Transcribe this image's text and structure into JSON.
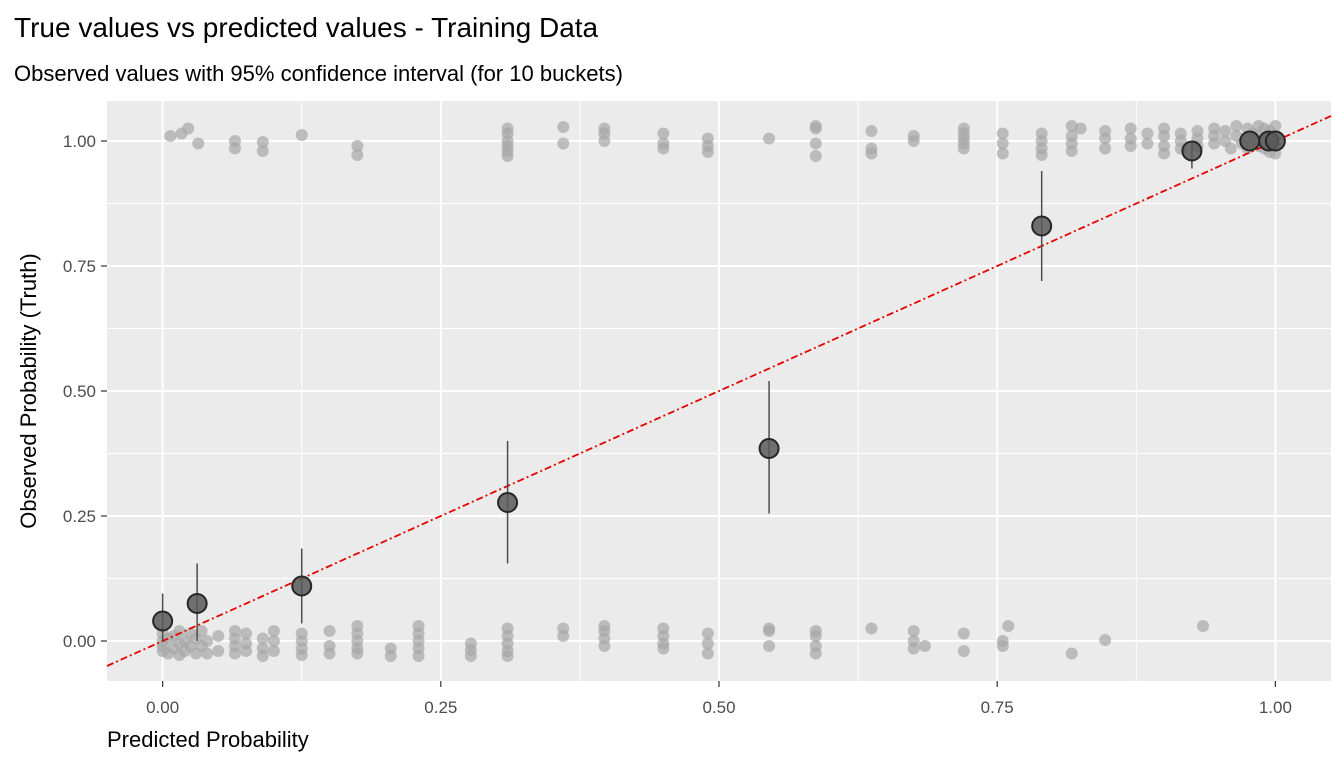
{
  "chart_data": {
    "type": "scatter",
    "title": "True values vs predicted values - Training Data",
    "subtitle": "Observed values with 95% confidence interval (for 10 buckets)",
    "xlabel": "Predicted Probability",
    "ylabel": "Observed Probability (Truth)",
    "xlim": [
      -0.05,
      1.05
    ],
    "ylim": [
      -0.08,
      1.08
    ],
    "x_ticks": [
      {
        "value": 0.0,
        "label": "0.00"
      },
      {
        "value": 0.25,
        "label": "0.25"
      },
      {
        "value": 0.5,
        "label": "0.50"
      },
      {
        "value": 0.75,
        "label": "0.75"
      },
      {
        "value": 1.0,
        "label": "1.00"
      }
    ],
    "y_ticks": [
      {
        "value": 0.0,
        "label": "0.00"
      },
      {
        "value": 0.25,
        "label": "0.25"
      },
      {
        "value": 0.5,
        "label": "0.50"
      },
      {
        "value": 0.75,
        "label": "0.75"
      },
      {
        "value": 1.0,
        "label": "1.00"
      }
    ],
    "grid": true,
    "reference_line": {
      "slope": 1,
      "intercept": 0,
      "style": "dashed",
      "color": "#e60000"
    },
    "colors": {
      "panel_background": "#ebebeb",
      "grid": "#ffffff",
      "observations": "#a6a6a6",
      "bucket_points": "#595959",
      "bucket_outline": "#262626",
      "error_bars": "#4d4d4d"
    },
    "observations_at_1": [
      [
        0.007,
        1.01
      ],
      [
        0.017,
        1.015
      ],
      [
        0.023,
        1.025
      ],
      [
        0.032,
        0.995
      ],
      [
        0.065,
        1.0
      ],
      [
        0.065,
        0.985
      ],
      [
        0.09,
        0.998
      ],
      [
        0.09,
        0.98
      ],
      [
        0.125,
        1.012
      ],
      [
        0.175,
        0.99
      ],
      [
        0.175,
        0.972
      ],
      [
        0.31,
        1.025
      ],
      [
        0.31,
        1.015
      ],
      [
        0.31,
        1.0
      ],
      [
        0.31,
        0.99
      ],
      [
        0.31,
        0.98
      ],
      [
        0.31,
        0.97
      ],
      [
        0.36,
        1.028
      ],
      [
        0.36,
        0.995
      ],
      [
        0.397,
        1.025
      ],
      [
        0.397,
        1.015
      ],
      [
        0.397,
        1.0
      ],
      [
        0.45,
        1.015
      ],
      [
        0.45,
        0.995
      ],
      [
        0.45,
        0.985
      ],
      [
        0.49,
        1.005
      ],
      [
        0.49,
        0.99
      ],
      [
        0.49,
        0.978
      ],
      [
        0.545,
        1.005
      ],
      [
        0.587,
        1.03
      ],
      [
        0.587,
        1.025
      ],
      [
        0.587,
        0.995
      ],
      [
        0.587,
        0.97
      ],
      [
        0.637,
        1.02
      ],
      [
        0.637,
        0.985
      ],
      [
        0.637,
        0.975
      ],
      [
        0.675,
        1.01
      ],
      [
        0.675,
        1.0
      ],
      [
        0.72,
        1.025
      ],
      [
        0.72,
        1.015
      ],
      [
        0.72,
        1.005
      ],
      [
        0.72,
        0.995
      ],
      [
        0.72,
        0.985
      ],
      [
        0.755,
        1.015
      ],
      [
        0.755,
        0.995
      ],
      [
        0.755,
        0.975
      ],
      [
        0.79,
        1.015
      ],
      [
        0.79,
        1.0
      ],
      [
        0.79,
        0.985
      ],
      [
        0.79,
        0.972
      ],
      [
        0.817,
        1.03
      ],
      [
        0.817,
        1.01
      ],
      [
        0.817,
        0.995
      ],
      [
        0.817,
        0.98
      ],
      [
        0.825,
        1.025
      ],
      [
        0.847,
        1.02
      ],
      [
        0.847,
        1.005
      ],
      [
        0.847,
        0.985
      ],
      [
        0.87,
        1.025
      ],
      [
        0.87,
        1.005
      ],
      [
        0.87,
        0.99
      ],
      [
        0.885,
        1.015
      ],
      [
        0.885,
        0.995
      ],
      [
        0.9,
        1.025
      ],
      [
        0.9,
        1.01
      ],
      [
        0.9,
        0.99
      ],
      [
        0.9,
        0.975
      ],
      [
        0.915,
        1.015
      ],
      [
        0.915,
        1.0
      ],
      [
        0.915,
        0.985
      ],
      [
        0.93,
        1.02
      ],
      [
        0.93,
        1.005
      ],
      [
        0.93,
        0.99
      ],
      [
        0.945,
        1.025
      ],
      [
        0.945,
        1.01
      ],
      [
        0.945,
        0.995
      ],
      [
        0.955,
        1.02
      ],
      [
        0.955,
        1.0
      ],
      [
        0.96,
        0.985
      ],
      [
        0.965,
        1.03
      ],
      [
        0.965,
        1.01
      ],
      [
        0.97,
        0.995
      ],
      [
        0.975,
        1.025
      ],
      [
        0.975,
        1.005
      ],
      [
        0.975,
        0.985
      ],
      [
        0.98,
        1.015
      ],
      [
        0.98,
        0.995
      ],
      [
        0.985,
        1.03
      ],
      [
        0.985,
        1.01
      ],
      [
        0.985,
        0.99
      ],
      [
        0.99,
        1.025
      ],
      [
        0.99,
        1.005
      ],
      [
        0.99,
        0.985
      ],
      [
        0.995,
        1.02
      ],
      [
        0.995,
        1.0
      ],
      [
        0.995,
        0.978
      ],
      [
        1.0,
        1.03
      ],
      [
        1.0,
        1.01
      ],
      [
        1.0,
        0.99
      ],
      [
        1.0,
        0.975
      ]
    ],
    "observations_at_0": [
      [
        0.0,
        0.015
      ],
      [
        0.0,
        0.0
      ],
      [
        0.0,
        -0.01
      ],
      [
        0.0,
        -0.02
      ],
      [
        0.005,
        0.005
      ],
      [
        0.005,
        -0.025
      ],
      [
        0.01,
        0.01
      ],
      [
        0.01,
        -0.015
      ],
      [
        0.015,
        0.02
      ],
      [
        0.015,
        -0.005
      ],
      [
        0.015,
        -0.028
      ],
      [
        0.02,
        0.0
      ],
      [
        0.02,
        -0.02
      ],
      [
        0.025,
        0.015
      ],
      [
        0.025,
        -0.01
      ],
      [
        0.03,
        0.005
      ],
      [
        0.03,
        -0.025
      ],
      [
        0.035,
        0.02
      ],
      [
        0.035,
        -0.01
      ],
      [
        0.04,
        0.0
      ],
      [
        0.04,
        -0.025
      ],
      [
        0.05,
        0.01
      ],
      [
        0.05,
        -0.02
      ],
      [
        0.065,
        0.02
      ],
      [
        0.065,
        0.005
      ],
      [
        0.065,
        -0.01
      ],
      [
        0.065,
        -0.025
      ],
      [
        0.075,
        0.015
      ],
      [
        0.075,
        -0.005
      ],
      [
        0.075,
        -0.02
      ],
      [
        0.09,
        0.005
      ],
      [
        0.09,
        -0.015
      ],
      [
        0.09,
        -0.03
      ],
      [
        0.1,
        0.02
      ],
      [
        0.1,
        0.0
      ],
      [
        0.1,
        -0.02
      ],
      [
        0.125,
        0.015
      ],
      [
        0.125,
        0.0
      ],
      [
        0.125,
        -0.015
      ],
      [
        0.125,
        -0.028
      ],
      [
        0.15,
        0.02
      ],
      [
        0.15,
        -0.01
      ],
      [
        0.15,
        -0.025
      ],
      [
        0.175,
        0.03
      ],
      [
        0.175,
        0.015
      ],
      [
        0.175,
        0.0
      ],
      [
        0.175,
        -0.015
      ],
      [
        0.175,
        -0.025
      ],
      [
        0.205,
        -0.015
      ],
      [
        0.205,
        -0.03
      ],
      [
        0.23,
        0.03
      ],
      [
        0.23,
        0.015
      ],
      [
        0.23,
        0.0
      ],
      [
        0.23,
        -0.015
      ],
      [
        0.23,
        -0.03
      ],
      [
        0.277,
        -0.005
      ],
      [
        0.277,
        -0.018
      ],
      [
        0.277,
        -0.03
      ],
      [
        0.31,
        0.025
      ],
      [
        0.31,
        0.01
      ],
      [
        0.31,
        -0.005
      ],
      [
        0.31,
        -0.02
      ],
      [
        0.31,
        -0.03
      ],
      [
        0.36,
        0.025
      ],
      [
        0.36,
        0.01
      ],
      [
        0.397,
        0.03
      ],
      [
        0.397,
        0.02
      ],
      [
        0.397,
        0.005
      ],
      [
        0.397,
        -0.01
      ],
      [
        0.45,
        0.025
      ],
      [
        0.45,
        0.01
      ],
      [
        0.45,
        -0.005
      ],
      [
        0.45,
        -0.015
      ],
      [
        0.49,
        0.015
      ],
      [
        0.49,
        -0.005
      ],
      [
        0.49,
        -0.025
      ],
      [
        0.545,
        0.025
      ],
      [
        0.545,
        0.02
      ],
      [
        0.545,
        -0.01
      ],
      [
        0.587,
        0.02
      ],
      [
        0.587,
        0.01
      ],
      [
        0.587,
        -0.01
      ],
      [
        0.587,
        -0.025
      ],
      [
        0.637,
        0.025
      ],
      [
        0.675,
        0.02
      ],
      [
        0.675,
        0.0
      ],
      [
        0.675,
        -0.015
      ],
      [
        0.685,
        -0.01
      ],
      [
        0.72,
        0.015
      ],
      [
        0.72,
        -0.02
      ],
      [
        0.755,
        0.0
      ],
      [
        0.755,
        -0.01
      ],
      [
        0.76,
        0.03
      ],
      [
        0.817,
        -0.025
      ],
      [
        0.847,
        0.002
      ],
      [
        0.935,
        0.03
      ]
    ],
    "buckets": [
      {
        "x": 0.0,
        "y": 0.04,
        "ci": [
          0.0,
          0.095
        ]
      },
      {
        "x": 0.031,
        "y": 0.075,
        "ci": [
          0.0,
          0.155
        ]
      },
      {
        "x": 0.125,
        "y": 0.11,
        "ci": [
          0.035,
          0.185
        ]
      },
      {
        "x": 0.31,
        "y": 0.277,
        "ci": [
          0.155,
          0.4
        ]
      },
      {
        "x": 0.545,
        "y": 0.385,
        "ci": [
          0.255,
          0.52
        ]
      },
      {
        "x": 0.79,
        "y": 0.83,
        "ci": [
          0.72,
          0.94
        ]
      },
      {
        "x": 0.925,
        "y": 0.98,
        "ci": [
          0.945,
          1.0
        ]
      },
      {
        "x": 0.977,
        "y": 1.0,
        "ci": [
          1.0,
          1.0
        ]
      },
      {
        "x": 0.994,
        "y": 1.0,
        "ci": [
          1.0,
          1.0
        ]
      },
      {
        "x": 1.0,
        "y": 1.0,
        "ci": [
          1.0,
          1.0
        ]
      }
    ]
  }
}
